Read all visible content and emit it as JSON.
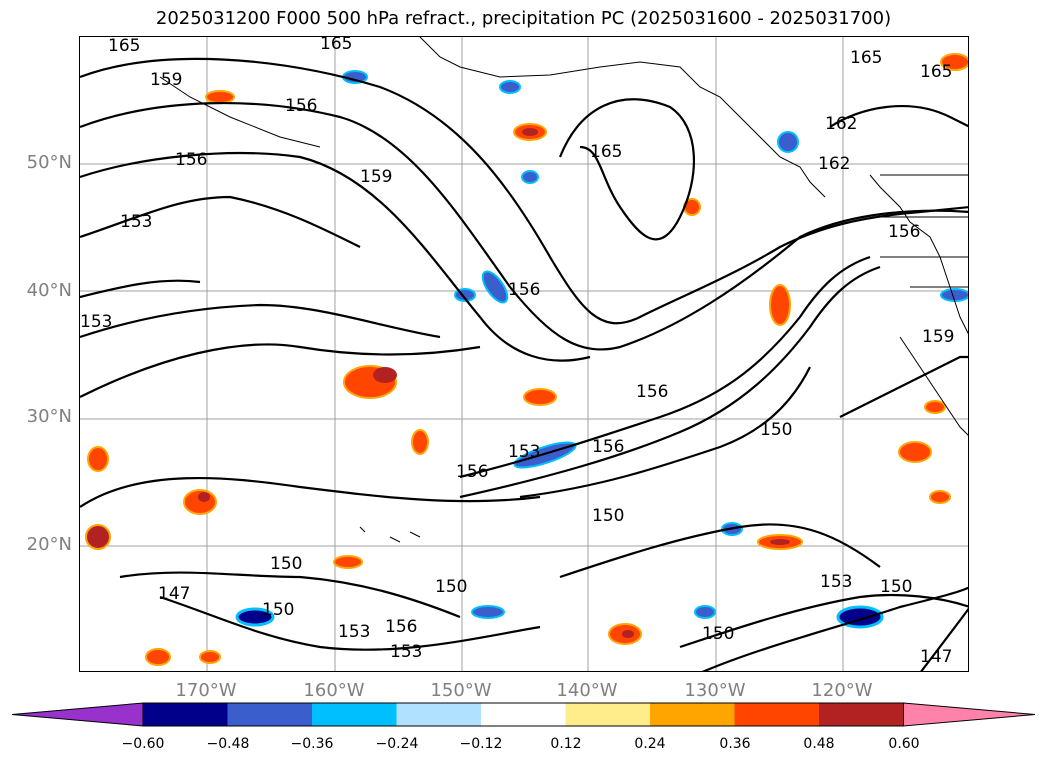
{
  "title": "2025031200 F000 500 hPa refract., precipitation PC (2025031600 - 2025031700)",
  "lat_labels": [
    "50°N",
    "40°N",
    "30°N",
    "20°N"
  ],
  "lon_labels": [
    "170°W",
    "160°W",
    "150°W",
    "140°W",
    "130°W",
    "120°W"
  ],
  "contour_labels": [
    "165",
    "165",
    "159",
    "156",
    "156",
    "159",
    "165",
    "165",
    "165",
    "162",
    "162",
    "156",
    "153",
    "156",
    "153",
    "156",
    "153",
    "156",
    "156",
    "150",
    "150",
    "150",
    "150",
    "150",
    "147",
    "153",
    "156",
    "153",
    "150",
    "153",
    "150",
    "147",
    "159"
  ],
  "colorbar": {
    "ticks": [
      "−0.60",
      "−0.48",
      "−0.36",
      "−0.24",
      "−0.12",
      "0.12",
      "0.24",
      "0.36",
      "0.48",
      "0.60"
    ],
    "colors": [
      "#9932cc",
      "#00008b",
      "#3a5fcd",
      "#00bfff",
      "#b0e2ff",
      "#ffffff",
      "#ffec8b",
      "#ffa500",
      "#ff4500",
      "#b22222",
      "#ff82ab"
    ]
  }
}
